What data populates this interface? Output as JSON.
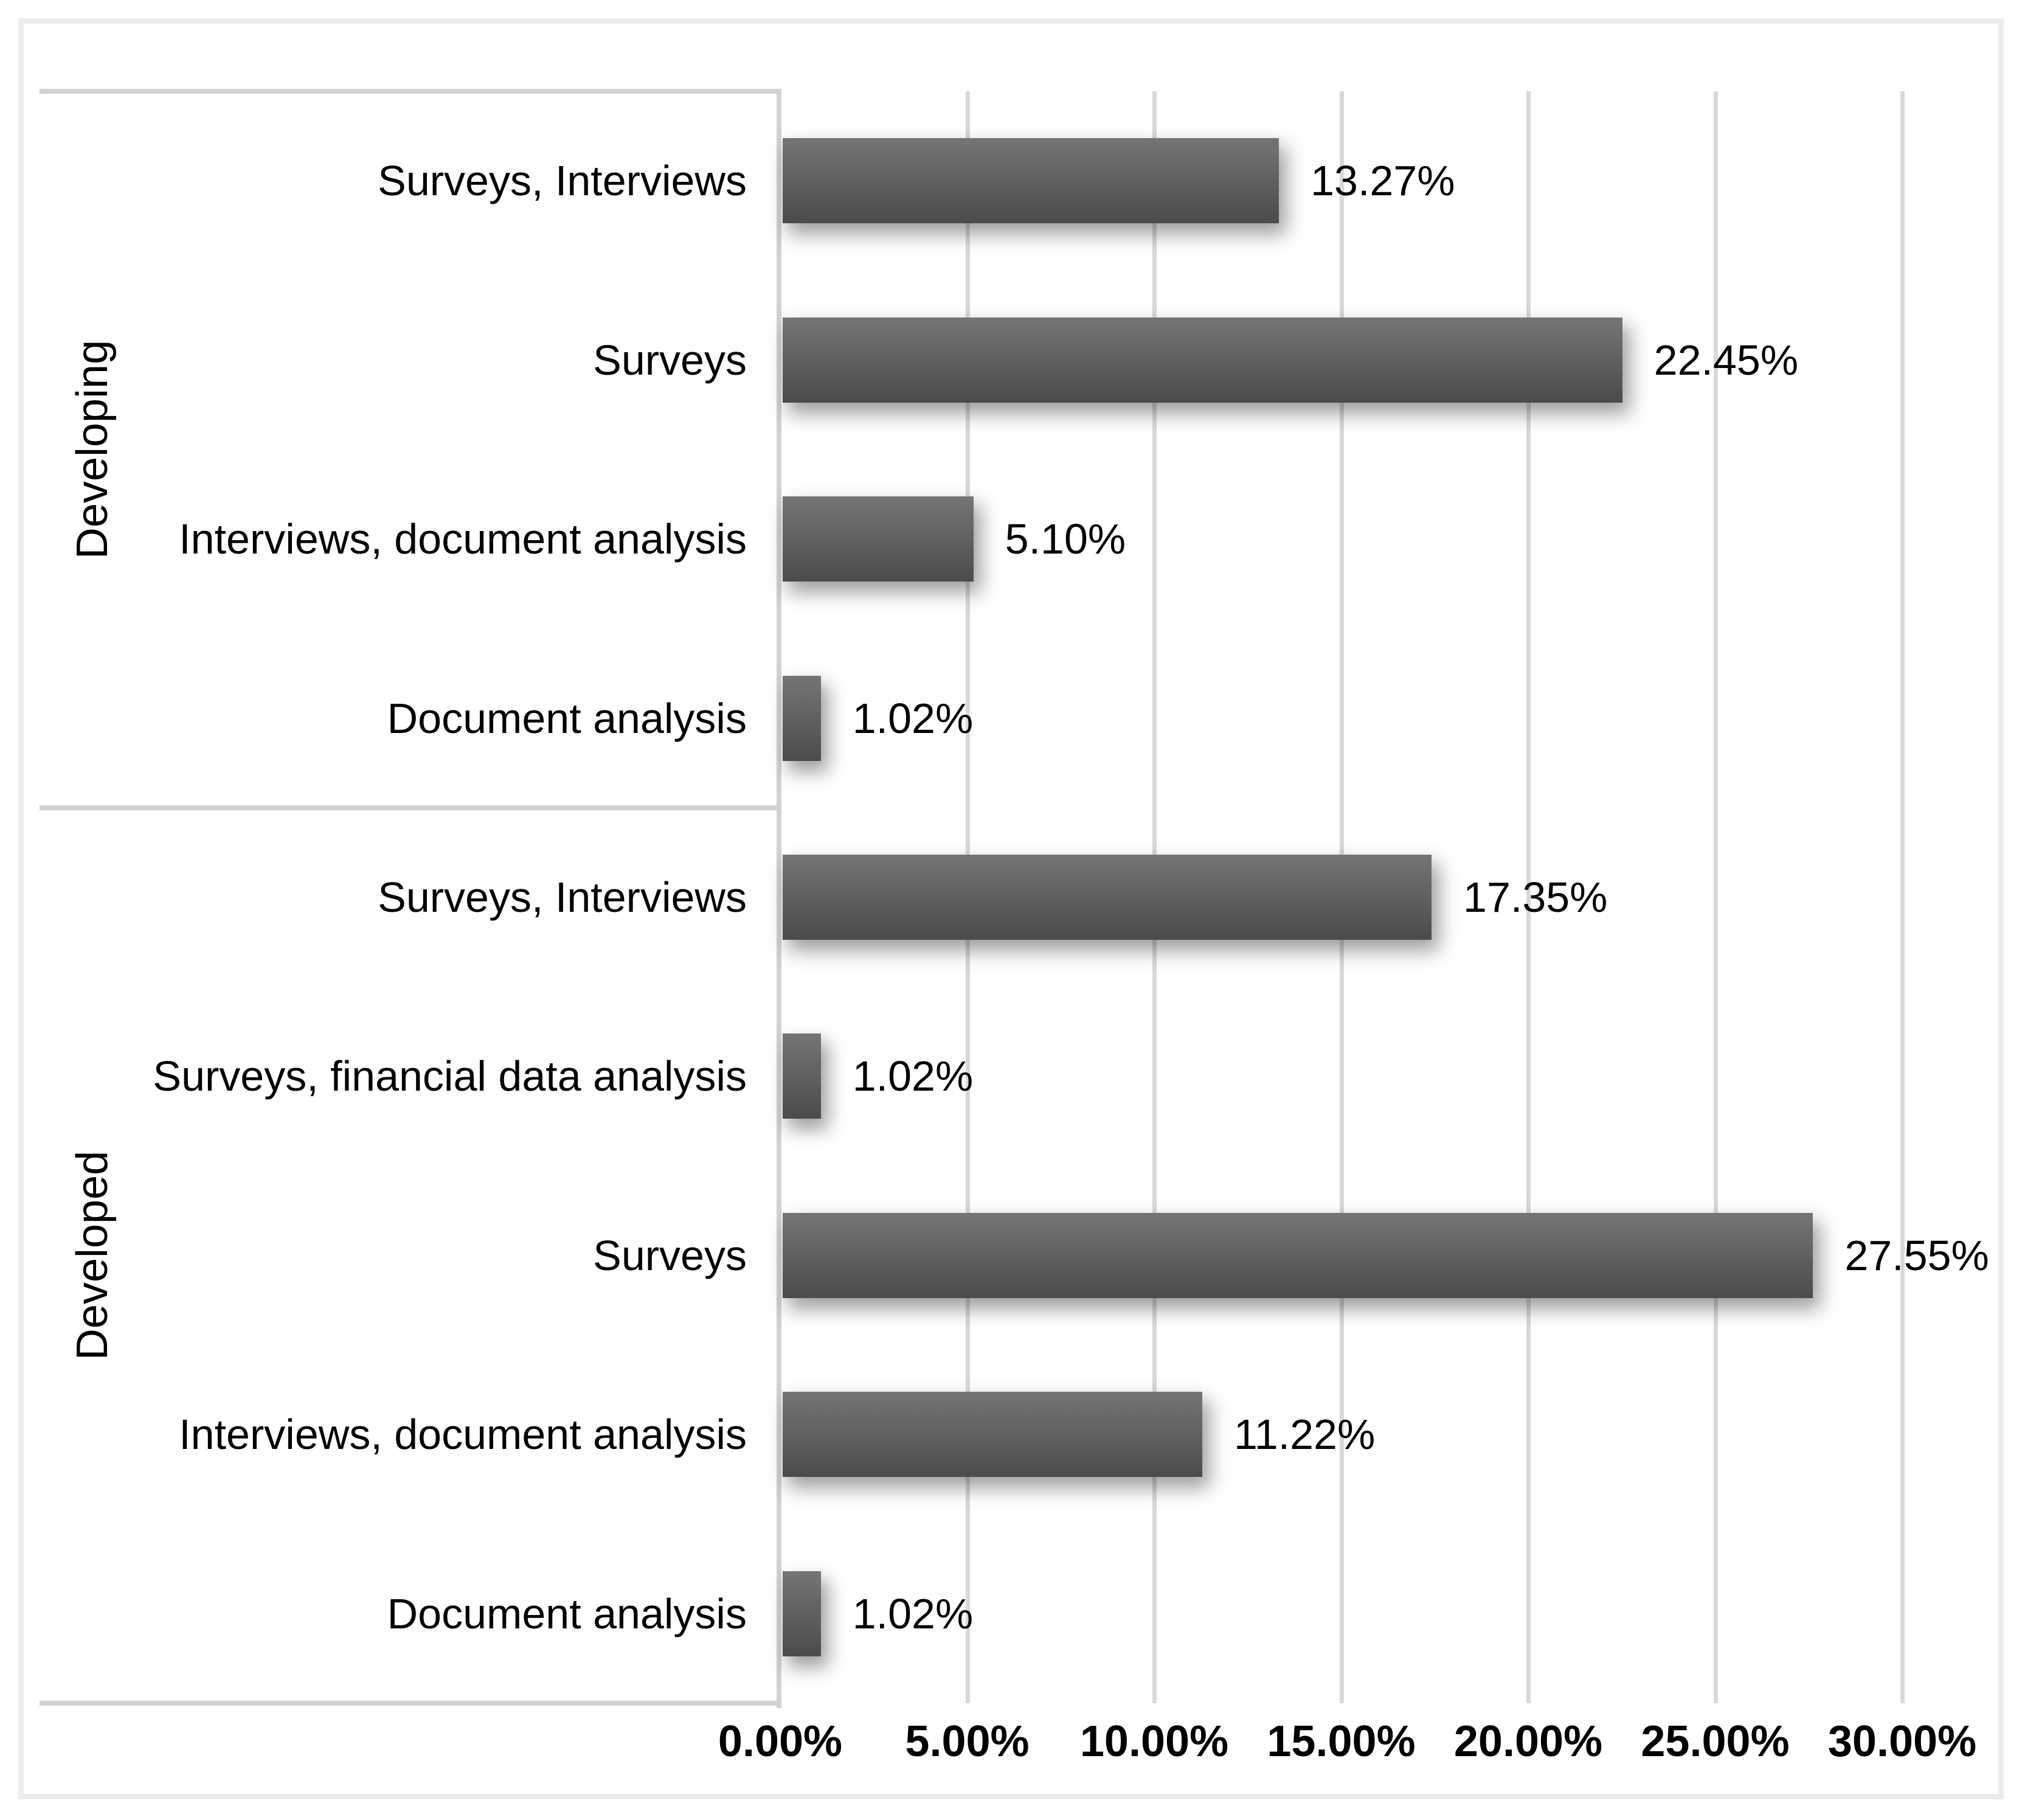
{
  "chart_data": {
    "type": "bar",
    "orientation": "horizontal",
    "title": "",
    "xlabel": "",
    "ylabel": "",
    "legend": "none",
    "grid": "vertical-gridlines-at-5-percent-steps",
    "x_axis": {
      "min": 0,
      "max": 30,
      "step": 5,
      "unit": "%",
      "tick_labels": [
        "0.00%",
        "5.00%",
        "10.00%",
        "15.00%",
        "20.00%",
        "25.00%",
        "30.00%"
      ]
    },
    "groups": [
      {
        "label": "Developing",
        "items": [
          {
            "category": "Surveys, Interviews",
            "value": 13.27,
            "value_label": "13.27%"
          },
          {
            "category": "Surveys",
            "value": 22.45,
            "value_label": "22.45%"
          },
          {
            "category": "Interviews, document analysis",
            "value": 5.1,
            "value_label": "5.10%"
          },
          {
            "category": "Document analysis",
            "value": 1.02,
            "value_label": "1.02%"
          }
        ]
      },
      {
        "label": "Developed",
        "items": [
          {
            "category": "Surveys, Interviews",
            "value": 17.35,
            "value_label": "17.35%"
          },
          {
            "category": "Surveys, financial data analysis",
            "value": 1.02,
            "value_label": "1.02%"
          },
          {
            "category": "Surveys",
            "value": 27.55,
            "value_label": "27.55%"
          },
          {
            "category": "Interviews, document analysis",
            "value": 11.22,
            "value_label": "11.22%"
          },
          {
            "category": "Document analysis",
            "value": 1.02,
            "value_label": "1.02%"
          }
        ]
      }
    ],
    "colors": {
      "bar_gradient_top": "#757575",
      "bar_gradient_bottom": "#4b4b4b",
      "gridline": "#d9d9d9",
      "axis_box_lines": "#d2d2d2",
      "outer_frame": "#ececec",
      "text": "#000000",
      "background": "#ffffff"
    }
  }
}
